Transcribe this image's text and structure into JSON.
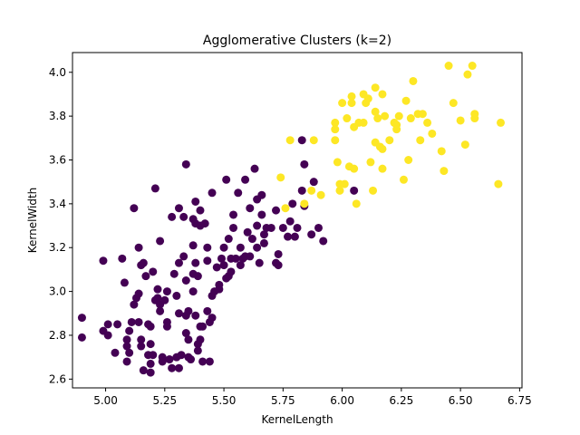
{
  "chart_data": {
    "type": "scatter",
    "title": "Agglomerative Clusters (k=2)",
    "xlabel": "KernelLength",
    "ylabel": "KernelWidth",
    "xlim": [
      4.86,
      6.76
    ],
    "ylim": [
      2.56,
      4.09
    ],
    "xticks": [
      "5.00",
      "5.25",
      "5.50",
      "5.75",
      "6.00",
      "6.25",
      "6.50",
      "6.75"
    ],
    "yticks": [
      "2.6",
      "2.8",
      "3.0",
      "3.2",
      "3.4",
      "3.6",
      "3.8",
      "4.0"
    ],
    "grid": false,
    "legend": "none",
    "colors": {
      "cluster_0": "#440154",
      "cluster_1": "#fde725"
    },
    "series": [
      {
        "color": "#440154",
        "points": [
          [
            4.9,
            2.88
          ],
          [
            4.9,
            2.79
          ],
          [
            4.99,
            3.14
          ],
          [
            4.99,
            2.82
          ],
          [
            5.01,
            2.85
          ],
          [
            5.01,
            2.8
          ],
          [
            5.04,
            2.72
          ],
          [
            5.05,
            2.85
          ],
          [
            5.07,
            3.15
          ],
          [
            5.08,
            3.04
          ],
          [
            5.09,
            2.78
          ],
          [
            5.09,
            2.75
          ],
          [
            5.09,
            2.68
          ],
          [
            5.1,
            2.82
          ],
          [
            5.1,
            2.72
          ],
          [
            5.11,
            2.86
          ],
          [
            5.12,
            3.38
          ],
          [
            5.12,
            2.94
          ],
          [
            5.13,
            2.97
          ],
          [
            5.14,
            3.2
          ],
          [
            5.14,
            2.99
          ],
          [
            5.14,
            2.86
          ],
          [
            5.15,
            3.12
          ],
          [
            5.15,
            2.78
          ],
          [
            5.15,
            2.75
          ],
          [
            5.16,
            3.13
          ],
          [
            5.16,
            2.64
          ],
          [
            5.17,
            3.07
          ],
          [
            5.18,
            2.85
          ],
          [
            5.18,
            2.71
          ],
          [
            5.19,
            2.84
          ],
          [
            5.19,
            2.76
          ],
          [
            5.19,
            2.67
          ],
          [
            5.19,
            2.63
          ],
          [
            5.2,
            3.09
          ],
          [
            5.2,
            2.71
          ],
          [
            5.21,
            3.47
          ],
          [
            5.21,
            2.96
          ],
          [
            5.22,
            3.01
          ],
          [
            5.22,
            2.97
          ],
          [
            5.23,
            3.23
          ],
          [
            5.23,
            2.94
          ],
          [
            5.23,
            2.91
          ],
          [
            5.24,
            2.7
          ],
          [
            5.24,
            2.68
          ],
          [
            5.25,
            2.96
          ],
          [
            5.26,
            3.0
          ],
          [
            5.26,
            2.86
          ],
          [
            5.26,
            2.84
          ],
          [
            5.27,
            2.69
          ],
          [
            5.28,
            3.34
          ],
          [
            5.28,
            2.65
          ],
          [
            5.29,
            3.08
          ],
          [
            5.3,
            2.98
          ],
          [
            5.3,
            2.7
          ],
          [
            5.31,
            3.38
          ],
          [
            5.31,
            3.13
          ],
          [
            5.31,
            2.9
          ],
          [
            5.31,
            2.65
          ],
          [
            5.32,
            2.71
          ],
          [
            5.33,
            3.34
          ],
          [
            5.33,
            3.16
          ],
          [
            5.34,
            3.58
          ],
          [
            5.34,
            3.05
          ],
          [
            5.34,
            2.89
          ],
          [
            5.34,
            2.81
          ],
          [
            5.35,
            2.91
          ],
          [
            5.35,
            2.78
          ],
          [
            5.35,
            2.7
          ],
          [
            5.36,
            2.69
          ],
          [
            5.37,
            3.33
          ],
          [
            5.37,
            3.21
          ],
          [
            5.37,
            3.08
          ],
          [
            5.37,
            3.0
          ],
          [
            5.38,
            3.41
          ],
          [
            5.38,
            3.31
          ],
          [
            5.38,
            3.13
          ],
          [
            5.38,
            2.89
          ],
          [
            5.39,
            3.07
          ],
          [
            5.39,
            2.76
          ],
          [
            5.39,
            2.73
          ],
          [
            5.4,
            3.37
          ],
          [
            5.4,
            3.3
          ],
          [
            5.4,
            2.84
          ],
          [
            5.4,
            2.78
          ],
          [
            5.41,
            2.84
          ],
          [
            5.41,
            2.68
          ],
          [
            5.42,
            3.31
          ],
          [
            5.43,
            3.14
          ],
          [
            5.43,
            3.2
          ],
          [
            5.43,
            2.91
          ],
          [
            5.44,
            2.68
          ],
          [
            5.44,
            2.86
          ],
          [
            5.45,
            3.45
          ],
          [
            5.45,
            2.98
          ],
          [
            5.45,
            2.88
          ],
          [
            5.46,
            3.0
          ],
          [
            5.47,
            3.11
          ],
          [
            5.48,
            3.03
          ],
          [
            5.48,
            3.01
          ],
          [
            5.49,
            3.15
          ],
          [
            5.5,
            3.2
          ],
          [
            5.5,
            3.12
          ],
          [
            5.51,
            3.51
          ],
          [
            5.51,
            3.06
          ],
          [
            5.52,
            3.24
          ],
          [
            5.52,
            3.07
          ],
          [
            5.53,
            3.15
          ],
          [
            5.53,
            3.09
          ],
          [
            5.54,
            3.35
          ],
          [
            5.54,
            3.29
          ],
          [
            5.55,
            3.15
          ],
          [
            5.56,
            3.45
          ],
          [
            5.57,
            3.2
          ],
          [
            5.57,
            3.12
          ],
          [
            5.58,
            3.15
          ],
          [
            5.59,
            3.16
          ],
          [
            5.59,
            3.51
          ],
          [
            5.6,
            3.27
          ],
          [
            5.61,
            3.38
          ],
          [
            5.61,
            3.16
          ],
          [
            5.62,
            3.24
          ],
          [
            5.63,
            3.56
          ],
          [
            5.64,
            3.42
          ],
          [
            5.64,
            3.3
          ],
          [
            5.64,
            3.2
          ],
          [
            5.65,
            3.13
          ],
          [
            5.66,
            3.44
          ],
          [
            5.66,
            3.35
          ],
          [
            5.67,
            3.26
          ],
          [
            5.67,
            3.22
          ],
          [
            5.68,
            3.29
          ],
          [
            5.7,
            3.29
          ],
          [
            5.72,
            3.13
          ],
          [
            5.72,
            3.37
          ],
          [
            5.73,
            3.17
          ],
          [
            5.73,
            3.12
          ],
          [
            5.75,
            3.29
          ],
          [
            5.77,
            3.25
          ],
          [
            5.78,
            3.32
          ],
          [
            5.79,
            3.4
          ],
          [
            5.8,
            3.25
          ],
          [
            5.81,
            3.29
          ],
          [
            5.83,
            3.46
          ],
          [
            5.83,
            3.69
          ],
          [
            5.84,
            3.39
          ],
          [
            5.84,
            3.58
          ],
          [
            5.87,
            3.26
          ],
          [
            5.88,
            3.5
          ],
          [
            5.9,
            3.29
          ],
          [
            5.92,
            3.23
          ],
          [
            6.05,
            3.46
          ]
        ]
      },
      {
        "color": "#fde725",
        "points": [
          [
            5.74,
            3.52
          ],
          [
            5.76,
            3.38
          ],
          [
            5.78,
            3.69
          ],
          [
            5.84,
            3.4
          ],
          [
            5.87,
            3.46
          ],
          [
            5.88,
            3.69
          ],
          [
            5.91,
            3.44
          ],
          [
            5.97,
            3.77
          ],
          [
            5.97,
            3.74
          ],
          [
            5.97,
            3.69
          ],
          [
            5.98,
            3.59
          ],
          [
            5.99,
            3.49
          ],
          [
            5.99,
            3.46
          ],
          [
            6.0,
            3.86
          ],
          [
            6.01,
            3.49
          ],
          [
            6.02,
            3.79
          ],
          [
            6.03,
            3.57
          ],
          [
            6.04,
            3.89
          ],
          [
            6.04,
            3.86
          ],
          [
            6.05,
            3.75
          ],
          [
            6.05,
            3.56
          ],
          [
            6.06,
            3.4
          ],
          [
            6.07,
            3.77
          ],
          [
            6.09,
            3.9
          ],
          [
            6.09,
            3.77
          ],
          [
            6.1,
            3.86
          ],
          [
            6.11,
            3.88
          ],
          [
            6.12,
            3.59
          ],
          [
            6.13,
            3.46
          ],
          [
            6.14,
            3.93
          ],
          [
            6.14,
            3.82
          ],
          [
            6.14,
            3.68
          ],
          [
            6.15,
            3.79
          ],
          [
            6.16,
            3.66
          ],
          [
            6.17,
            3.9
          ],
          [
            6.17,
            3.65
          ],
          [
            6.17,
            3.56
          ],
          [
            6.18,
            3.8
          ],
          [
            6.2,
            3.69
          ],
          [
            6.22,
            3.77
          ],
          [
            6.23,
            3.76
          ],
          [
            6.23,
            3.74
          ],
          [
            6.24,
            3.8
          ],
          [
            6.26,
            3.51
          ],
          [
            6.27,
            3.87
          ],
          [
            6.28,
            3.6
          ],
          [
            6.29,
            3.79
          ],
          [
            6.3,
            3.96
          ],
          [
            6.32,
            3.81
          ],
          [
            6.33,
            3.69
          ],
          [
            6.34,
            3.81
          ],
          [
            6.36,
            3.77
          ],
          [
            6.38,
            3.72
          ],
          [
            6.42,
            3.64
          ],
          [
            6.43,
            3.55
          ],
          [
            6.45,
            4.03
          ],
          [
            6.47,
            3.86
          ],
          [
            6.5,
            3.78
          ],
          [
            6.52,
            3.67
          ],
          [
            6.53,
            3.99
          ],
          [
            6.55,
            4.03
          ],
          [
            6.56,
            3.79
          ],
          [
            6.56,
            3.81
          ],
          [
            6.66,
            3.49
          ],
          [
            6.67,
            3.77
          ]
        ]
      }
    ]
  }
}
